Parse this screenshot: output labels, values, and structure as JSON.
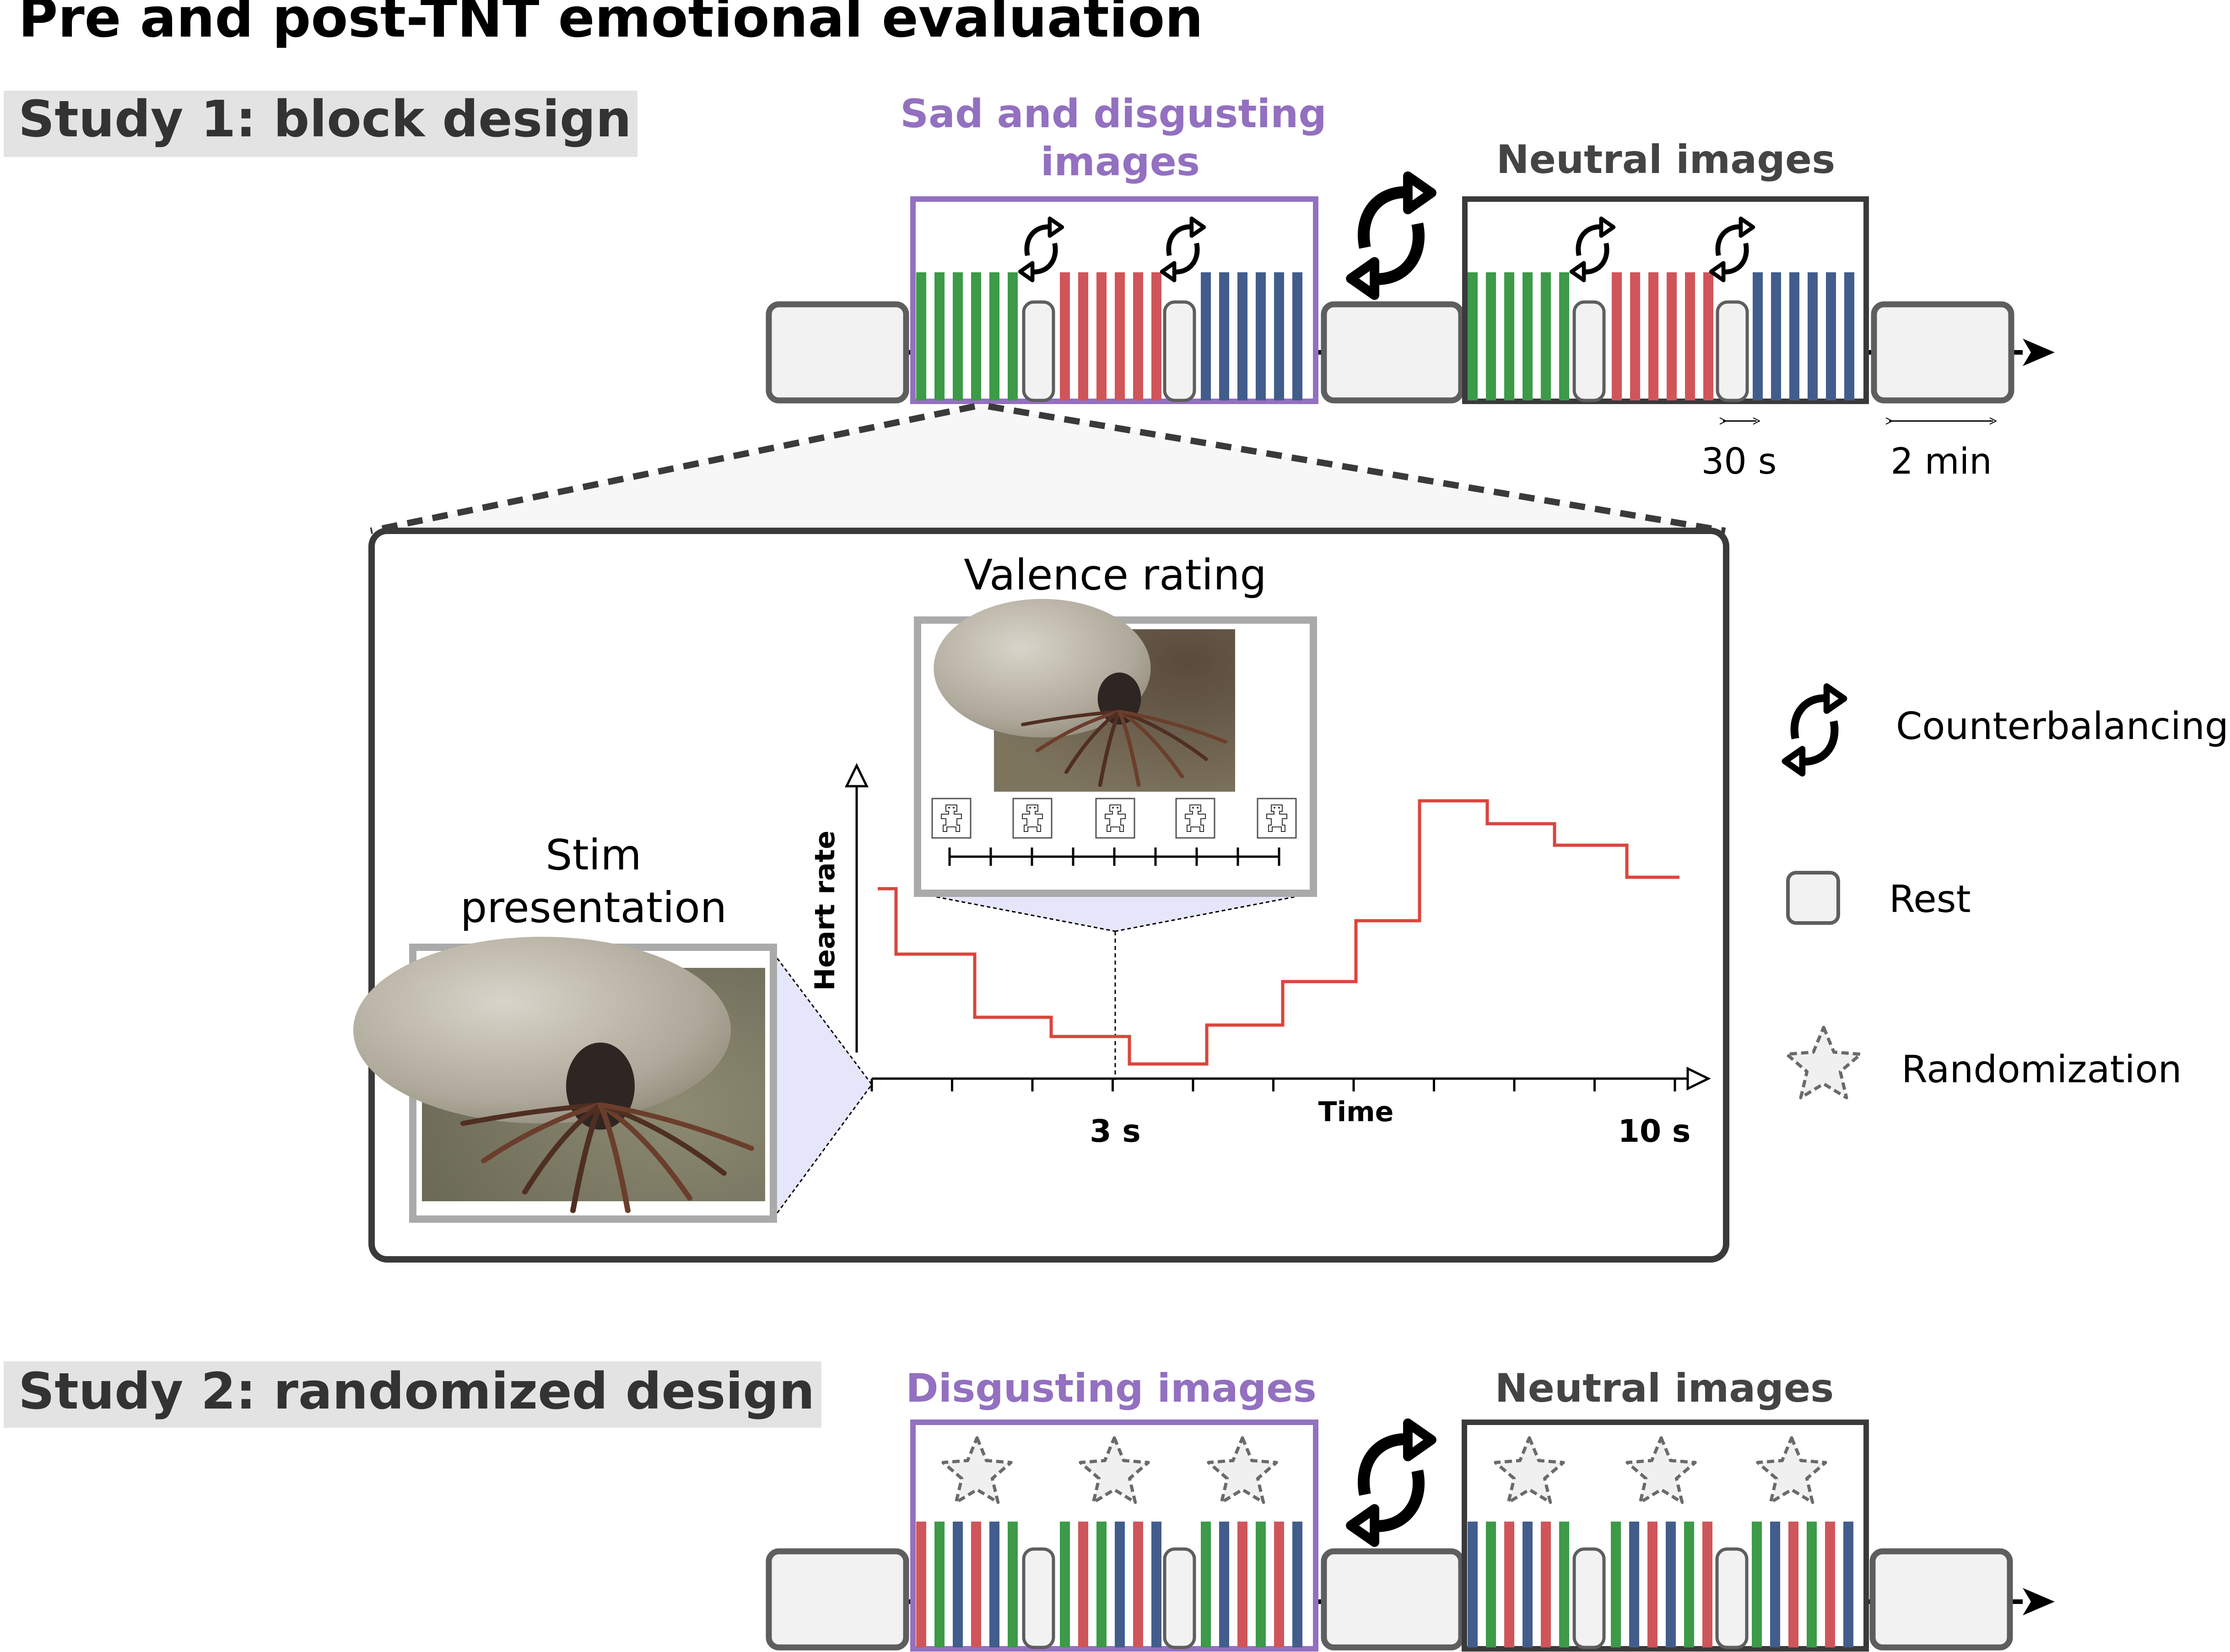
{
  "title": "Pre and post-TNT emotional evaluation",
  "study1": {
    "heading": "Study 1: block design",
    "emotional_label_line1": "Sad and disgusting",
    "emotional_label_line2": "images",
    "neutral_label": "Neutral images",
    "block_duration": "30 s",
    "rest_duration": "2 min"
  },
  "trial": {
    "valence_title": "Valence rating",
    "stim_title_line1": "Stim",
    "stim_title_line2": "presentation",
    "y_axis_label": "Heart rate",
    "x_axis_label": "Time",
    "tick_3s": "3 s",
    "tick_10s": "10 s"
  },
  "legend": {
    "counterbalancing": "Counterbalancing",
    "rest": "Rest",
    "randomization": "Randomization"
  },
  "study2": {
    "heading": "Study 2: randomized design",
    "emotional_label": "Disgusting images",
    "neutral_label": "Neutral images"
  },
  "colors": {
    "purple": "#9370c0",
    "dark": "#3a3a3a",
    "green": "#3c9a48",
    "red": "#d0555a",
    "blue": "#425d8c",
    "rest_fill": "#f2f2f2",
    "rest_stroke": "#5e5e5e",
    "heart_line": "#d9463e"
  },
  "icons": [
    "counterbalance-icon",
    "rest-icon",
    "star-icon",
    "tick-photo",
    "sam-manikin-icon"
  ]
}
